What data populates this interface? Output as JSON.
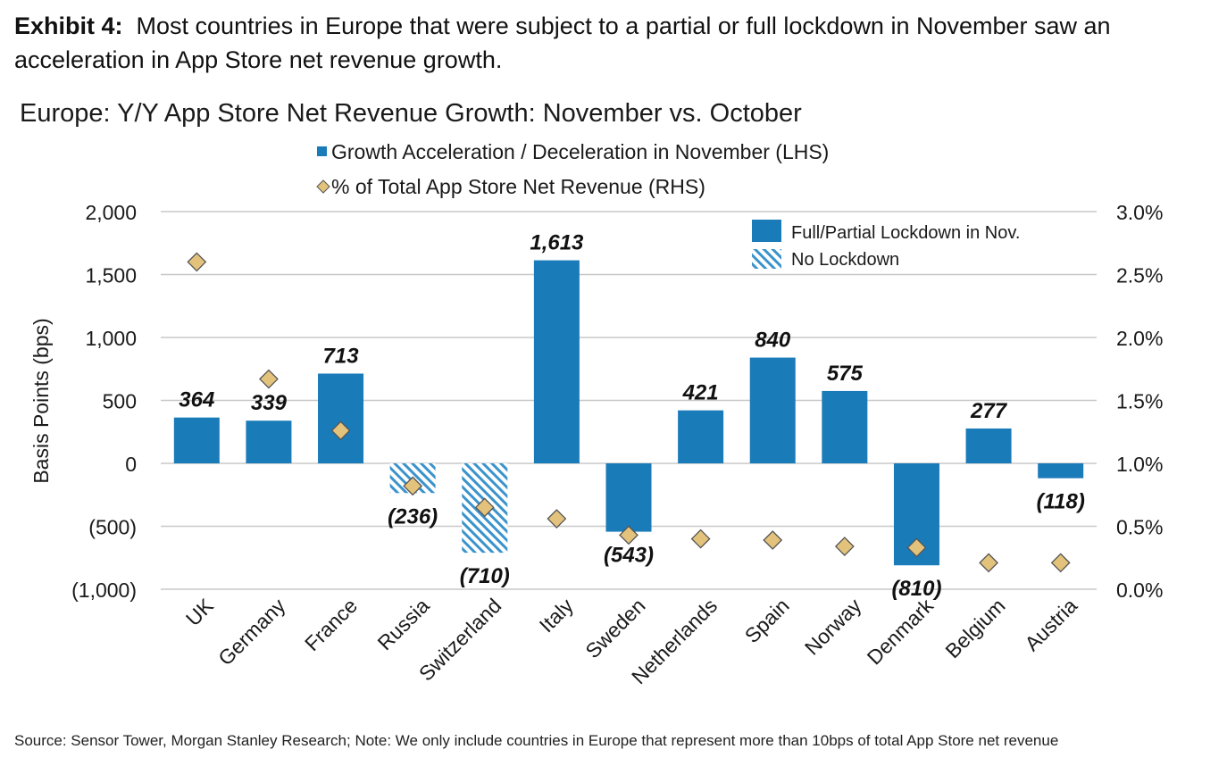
{
  "exhibit": {
    "label": "Exhibit 4:",
    "text": "Most countries in Europe that were subject to a partial or full lockdown in November saw an acceleration in App Store net revenue growth."
  },
  "colors": {
    "bar": "#1a7bb9",
    "diamond_fill": "#e3c27c",
    "diamond_stroke": "#555555",
    "grid": "#c8c8c8"
  },
  "chart_data": {
    "type": "bar",
    "title": "Europe: Y/Y App Store Net Revenue Growth: November vs. October",
    "legend_top": [
      {
        "name": "Growth Acceleration / Deceleration in November (LHS)",
        "marker": "square"
      },
      {
        "name": "% of Total App Store Net Revenue (RHS)",
        "marker": "diamond"
      }
    ],
    "legend_inner": [
      {
        "name": "Full/Partial Lockdown in Nov.",
        "pattern": "solid"
      },
      {
        "name": "No Lockdown",
        "pattern": "hatched"
      }
    ],
    "categories": [
      "UK",
      "Germany",
      "France",
      "Russia",
      "Switzerland",
      "Italy",
      "Sweden",
      "Netherlands",
      "Spain",
      "Norway",
      "Denmark",
      "Belgium",
      "Austria"
    ],
    "series": [
      {
        "name": "Growth Acceleration / Deceleration in November (LHS)",
        "axis": "left",
        "values": [
          364,
          339,
          713,
          -236,
          -710,
          1613,
          -543,
          421,
          840,
          575,
          -810,
          277,
          -118
        ],
        "labels": [
          "364",
          "339",
          "713",
          "(236)",
          "(710)",
          "1,613",
          "(543)",
          "421",
          "840",
          "575",
          "(810)",
          "277",
          "(118)"
        ],
        "lockdown": [
          true,
          true,
          true,
          false,
          false,
          true,
          true,
          true,
          true,
          true,
          true,
          true,
          true
        ]
      },
      {
        "name": "% of Total App Store Net Revenue (RHS)",
        "axis": "right",
        "values": [
          2.6,
          1.67,
          1.26,
          0.82,
          0.65,
          0.56,
          0.43,
          0.4,
          0.39,
          0.34,
          0.33,
          0.21,
          0.21
        ]
      }
    ],
    "ylabel": "Basis Points (bps)",
    "ylim": [
      -1000,
      2000
    ],
    "yticks": [
      2000,
      1500,
      1000,
      500,
      0,
      -500,
      -1000
    ],
    "ytick_labels": [
      "2,000",
      "1,500",
      "1,000",
      "500",
      "0",
      "(500)",
      "(1,000)"
    ],
    "y2lim": [
      0,
      3
    ],
    "y2ticks": [
      3,
      2.5,
      2,
      1.5,
      1,
      0.5,
      0
    ],
    "y2tick_labels": [
      "3.0%",
      "2.5%",
      "2.0%",
      "1.5%",
      "1.0%",
      "0.5%",
      "0.0%"
    ],
    "grid": true
  },
  "source": "Source: Sensor Tower, Morgan Stanley Research; Note: We only include countries in Europe that represent more than 10bps of total App Store net revenue"
}
